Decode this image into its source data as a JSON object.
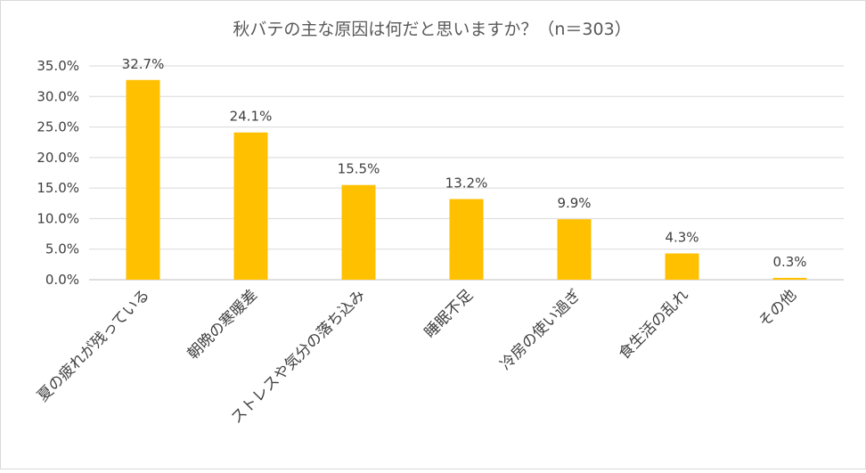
{
  "chart_data": {
    "type": "bar",
    "title": "秋バテの主な原因は何だと思いますか？（n＝303）",
    "categories": [
      "夏の疲れが残っている",
      "朝晩の寒暖差",
      "ストレスや気分の落ち込み",
      "睡眠不足",
      "冷房の使い過ぎ",
      "食生活の乱れ",
      "その他"
    ],
    "values": [
      32.7,
      24.1,
      15.5,
      13.2,
      9.9,
      4.3,
      0.3
    ],
    "data_labels": [
      "32.7%",
      "24.1%",
      "15.5%",
      "13.2%",
      "9.9%",
      "4.3%",
      "0.3%"
    ],
    "y_ticks": [
      0,
      5,
      10,
      15,
      20,
      25,
      30,
      35
    ],
    "y_tick_labels": [
      "0.0%",
      "5.0%",
      "10.0%",
      "15.0%",
      "20.0%",
      "25.0%",
      "30.0%",
      "35.0%"
    ],
    "ylim": [
      0,
      35
    ],
    "xlabel": "",
    "ylabel": "",
    "grid": true,
    "bar_color": "#ffc000"
  }
}
